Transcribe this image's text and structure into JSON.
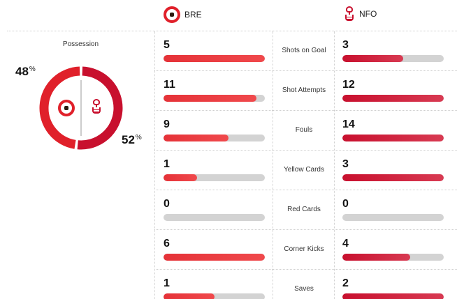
{
  "teams": {
    "home": {
      "abbr": "BRE",
      "color": "#e0202a"
    },
    "away": {
      "abbr": "NFO",
      "color": "#c8102e"
    }
  },
  "possession": {
    "title": "Possession",
    "home_pct": 48,
    "away_pct": 52,
    "home_pct_text": "48",
    "away_pct_text": "52",
    "unit": "%"
  },
  "stats": [
    {
      "label": "Shots on Goal",
      "home": "5",
      "away": "3",
      "home_fill": 1.0,
      "away_fill": 0.6
    },
    {
      "label": "Shot Attempts",
      "home": "11",
      "away": "12",
      "home_fill": 0.92,
      "away_fill": 1.0
    },
    {
      "label": "Fouls",
      "home": "9",
      "away": "14",
      "home_fill": 0.64,
      "away_fill": 1.0
    },
    {
      "label": "Yellow Cards",
      "home": "1",
      "away": "3",
      "home_fill": 0.33,
      "away_fill": 1.0
    },
    {
      "label": "Red Cards",
      "home": "0",
      "away": "0",
      "home_fill": 0.0,
      "away_fill": 0.0
    },
    {
      "label": "Corner Kicks",
      "home": "6",
      "away": "4",
      "home_fill": 1.0,
      "away_fill": 0.67
    },
    {
      "label": "Saves",
      "home": "1",
      "away": "2",
      "home_fill": 0.5,
      "away_fill": 1.0
    }
  ]
}
